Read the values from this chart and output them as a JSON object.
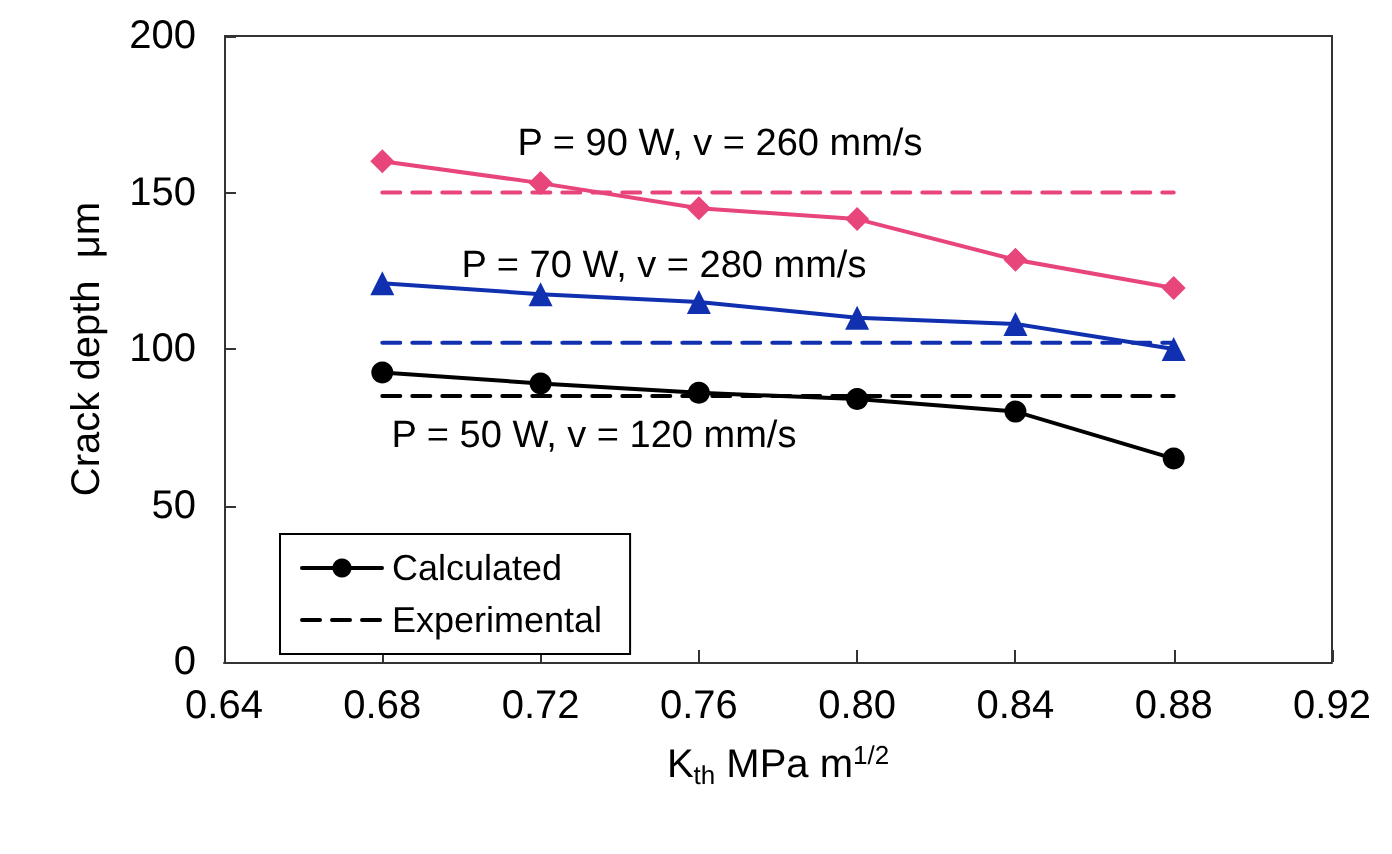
{
  "chart_data": {
    "type": "line",
    "xlabel": "K$_{th}$ MPa m$^{1/2}$",
    "ylabel": "Crack depth  μm",
    "x": [
      0.68,
      0.72,
      0.76,
      0.8,
      0.84,
      0.88
    ],
    "xlim": [
      0.64,
      0.92
    ],
    "xticks": [
      {
        "value": 0.64,
        "label": "0.64"
      },
      {
        "value": 0.68,
        "label": "0.68"
      },
      {
        "value": 0.72,
        "label": "0.72"
      },
      {
        "value": 0.76,
        "label": "0.76"
      },
      {
        "value": 0.8,
        "label": "0.80"
      },
      {
        "value": 0.84,
        "label": "0.84"
      },
      {
        "value": 0.88,
        "label": "0.88"
      },
      {
        "value": 0.92,
        "label": "0.92"
      }
    ],
    "ylim": [
      0,
      200
    ],
    "yticks": [
      0,
      50,
      100,
      150,
      200
    ],
    "grid": false,
    "legend": "bottom left",
    "series": [
      {
        "color": "#e8457a",
        "marker": "diamond",
        "line_style": "solid",
        "values": [
          160,
          153,
          145,
          141.5,
          128.5,
          119.5
        ]
      },
      {
        "color": "#1030b0",
        "marker": "triangle",
        "line_style": "solid",
        "values": [
          121,
          117.5,
          115,
          110,
          108,
          100
        ]
      },
      {
        "name": "Calculated",
        "color": "#000000",
        "marker": "circle",
        "line_style": "solid",
        "values": [
          92.5,
          89,
          86,
          84,
          80,
          65
        ]
      },
      {
        "color": "#e8457a",
        "marker": "none",
        "line_style": "dashed",
        "values": [
          150,
          150,
          150,
          150,
          150,
          150
        ]
      },
      {
        "color": "#1030b0",
        "marker": "none",
        "line_style": "dashed",
        "values": [
          102,
          102,
          102,
          102,
          102,
          102
        ]
      },
      {
        "name": "Experimental",
        "color": "#000000",
        "marker": "none",
        "line_style": "dashed",
        "values": [
          85,
          85,
          85,
          85,
          85,
          85
        ]
      }
    ],
    "annotations": [
      "P = 90 W, v = 260 mm/s",
      "P = 70 W, v = 280 mm/s",
      "P = 50 W, v = 120 mm/s"
    ]
  }
}
